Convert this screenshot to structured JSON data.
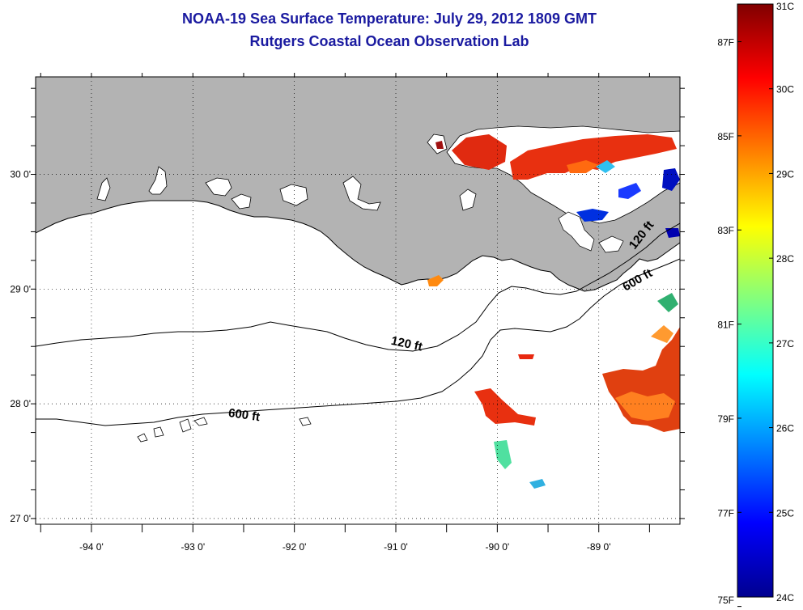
{
  "title": {
    "line1": "NOAA-19 Sea Surface Temperature:  July 29, 2012 1809 GMT",
    "line2": "Rutgers Coastal Ocean Observation Lab"
  },
  "colors": {
    "title": "#1a1aa0",
    "land": "#b3b3b3",
    "ocean": "#ffffff"
  },
  "map": {
    "lon_range": [
      -94.55,
      -88.2
    ],
    "lat_range": [
      26.95,
      30.85
    ],
    "lon_ticks": [
      {
        "value": -94,
        "label": "-94 0'"
      },
      {
        "value": -93,
        "label": "-93 0'"
      },
      {
        "value": -92,
        "label": "-92 0'"
      },
      {
        "value": -91,
        "label": "-91 0'"
      },
      {
        "value": -90,
        "label": "-90 0'"
      },
      {
        "value": -89,
        "label": "-89 0'"
      }
    ],
    "lat_ticks": [
      {
        "value": 30,
        "label": "30 0'"
      },
      {
        "value": 29,
        "label": "29 0'"
      },
      {
        "value": 28,
        "label": "28 0'"
      },
      {
        "value": 27,
        "label": "27 0'"
      }
    ],
    "contour_labels": [
      {
        "text": "120 ft",
        "lon": -90.9,
        "lat": 28.49,
        "rotate": 12
      },
      {
        "text": "600 ft",
        "lon": -92.5,
        "lat": 27.87,
        "rotate": 8
      },
      {
        "text": "120 ft",
        "lon": -88.55,
        "lat": 29.45,
        "rotate": -52
      },
      {
        "text": "600 ft",
        "lon": -88.6,
        "lat": 29.05,
        "rotate": -30
      }
    ]
  },
  "colorbar": {
    "celsius_ticks": [
      {
        "value": 31,
        "label": "31C"
      },
      {
        "value": 30,
        "label": "30C"
      },
      {
        "value": 29,
        "label": "29C"
      },
      {
        "value": 28,
        "label": "28C"
      },
      {
        "value": 27,
        "label": "27C"
      },
      {
        "value": 26,
        "label": "26C"
      },
      {
        "value": 25,
        "label": "25C"
      },
      {
        "value": 24,
        "label": "24C"
      }
    ],
    "fahrenheit_ticks": [
      {
        "value": 87,
        "label": "87F"
      },
      {
        "value": 85,
        "label": "85F"
      },
      {
        "value": 83,
        "label": "83F"
      },
      {
        "value": 81,
        "label": "81F"
      },
      {
        "value": 79,
        "label": "79F"
      },
      {
        "value": 77,
        "label": "77F"
      },
      {
        "value": 75,
        "label": "75F"
      }
    ],
    "range_c": [
      24,
      31
    ],
    "stops": [
      "#00008f",
      "#0000ff",
      "#0080ff",
      "#00ffff",
      "#80ff80",
      "#ffff00",
      "#ff8000",
      "#ff0000",
      "#800000"
    ]
  }
}
